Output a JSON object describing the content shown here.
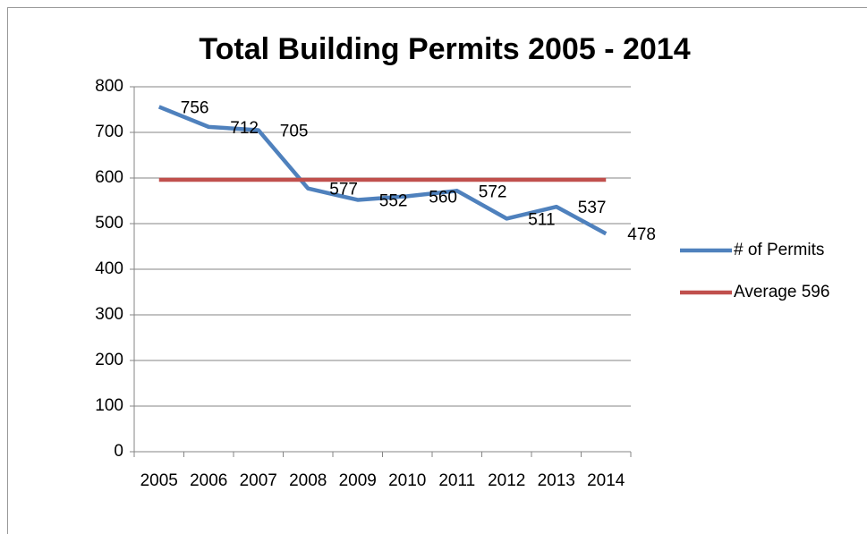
{
  "chart_data": {
    "type": "line",
    "title": "Total Building Permits 2005 - 2014",
    "categories": [
      "2005",
      "2006",
      "2007",
      "2008",
      "2009",
      "2010",
      "2011",
      "2012",
      "2013",
      "2014"
    ],
    "series": [
      {
        "name": "# of Permits",
        "color": "#4f81bd",
        "values": [
          756,
          712,
          705,
          577,
          552,
          560,
          572,
          511,
          537,
          478
        ]
      },
      {
        "name": "Average 596",
        "color": "#c0504d",
        "values": [
          596,
          596,
          596,
          596,
          596,
          596,
          596,
          596,
          596,
          596
        ]
      }
    ],
    "ylim": [
      0,
      800
    ],
    "yticks": [
      0,
      100,
      200,
      300,
      400,
      500,
      600,
      700,
      800
    ],
    "grid": true,
    "legend": "right"
  }
}
